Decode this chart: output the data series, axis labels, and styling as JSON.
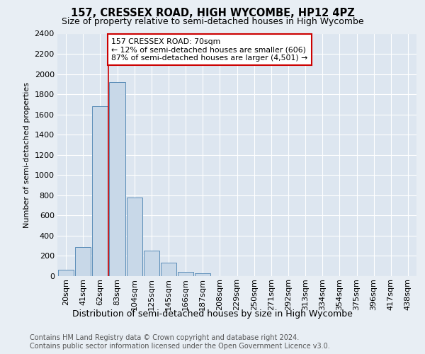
{
  "title": "157, CRESSEX ROAD, HIGH WYCOMBE, HP12 4PZ",
  "subtitle": "Size of property relative to semi-detached houses in High Wycombe",
  "xlabel": "Distribution of semi-detached houses by size in High Wycombe",
  "ylabel": "Number of semi-detached properties",
  "footer1": "Contains HM Land Registry data © Crown copyright and database right 2024.",
  "footer2": "Contains public sector information licensed under the Open Government Licence v3.0.",
  "bar_labels": [
    "20sqm",
    "41sqm",
    "62sqm",
    "83sqm",
    "104sqm",
    "125sqm",
    "145sqm",
    "166sqm",
    "187sqm",
    "208sqm",
    "229sqm",
    "250sqm",
    "271sqm",
    "292sqm",
    "313sqm",
    "334sqm",
    "354sqm",
    "375sqm",
    "396sqm",
    "417sqm",
    "438sqm"
  ],
  "bar_values": [
    60,
    285,
    1680,
    1920,
    780,
    255,
    130,
    40,
    30,
    0,
    0,
    0,
    0,
    0,
    0,
    0,
    0,
    0,
    0,
    0,
    0
  ],
  "bar_color": "#c8d8e8",
  "bar_edge_color": "#5b8db8",
  "ylim": [
    0,
    2400
  ],
  "yticks": [
    0,
    200,
    400,
    600,
    800,
    1000,
    1200,
    1400,
    1600,
    1800,
    2000,
    2200,
    2400
  ],
  "vline_color": "#cc0000",
  "annotation_line1": "157 CRESSEX ROAD: 70sqm",
  "annotation_line2": "← 12% of semi-detached houses are smaller (606)",
  "annotation_line3": "87% of semi-detached houses are larger (4,501) →",
  "annotation_box_color": "#cc0000",
  "annotation_fill": "#ffffff",
  "background_color": "#e8eef4",
  "plot_bg_color": "#dde6f0",
  "grid_color": "#ffffff",
  "title_fontsize": 10.5,
  "subtitle_fontsize": 9,
  "ylabel_fontsize": 8,
  "xlabel_fontsize": 9,
  "tick_fontsize": 8,
  "footer_fontsize": 7
}
